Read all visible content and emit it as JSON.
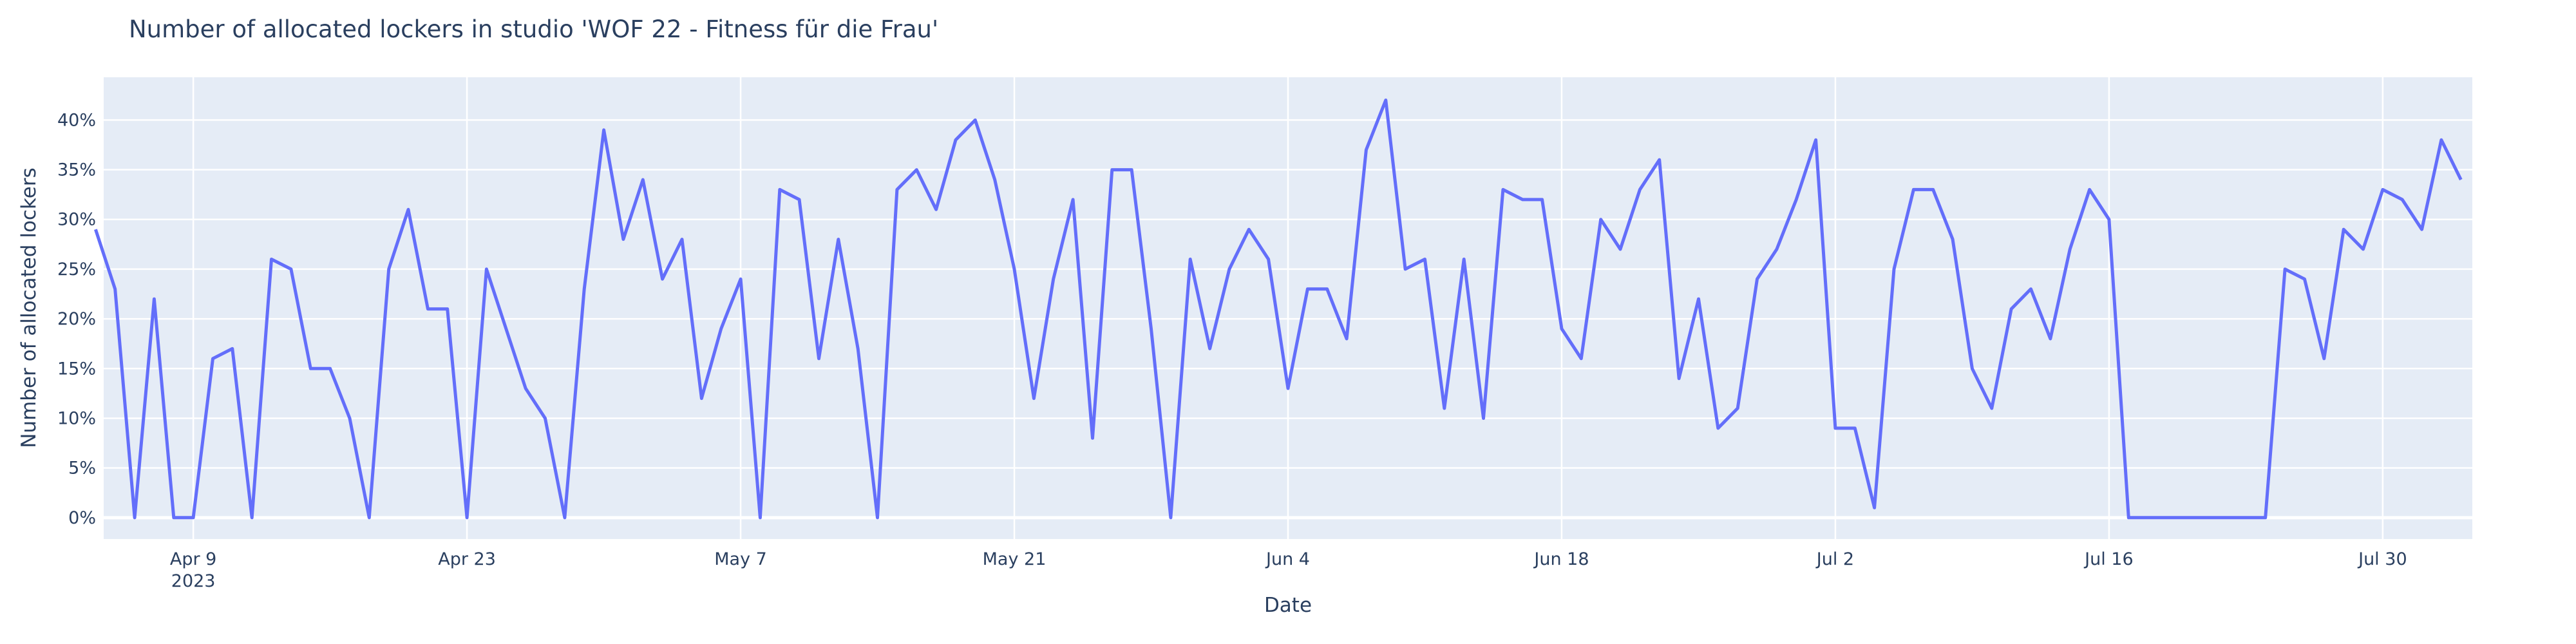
{
  "chart_data": {
    "type": "line",
    "title": "Number of allocated lockers in studio 'WOF 22 - Fitness für die Frau'",
    "x_label": "Date",
    "y_label": "Number of allocated lockers",
    "x": [
      "2023-04-04",
      "2023-04-05",
      "2023-04-06",
      "2023-04-07",
      "2023-04-08",
      "2023-04-09",
      "2023-04-10",
      "2023-04-11",
      "2023-04-12",
      "2023-04-13",
      "2023-04-14",
      "2023-04-15",
      "2023-04-16",
      "2023-04-17",
      "2023-04-18",
      "2023-04-19",
      "2023-04-20",
      "2023-04-21",
      "2023-04-22",
      "2023-04-23",
      "2023-04-24",
      "2023-04-25",
      "2023-04-26",
      "2023-04-27",
      "2023-04-28",
      "2023-04-29",
      "2023-04-30",
      "2023-05-01",
      "2023-05-02",
      "2023-05-03",
      "2023-05-04",
      "2023-05-05",
      "2023-05-06",
      "2023-05-07",
      "2023-05-08",
      "2023-05-09",
      "2023-05-10",
      "2023-05-11",
      "2023-05-12",
      "2023-05-13",
      "2023-05-14",
      "2023-05-15",
      "2023-05-16",
      "2023-05-17",
      "2023-05-18",
      "2023-05-19",
      "2023-05-20",
      "2023-05-21",
      "2023-05-22",
      "2023-05-23",
      "2023-05-24",
      "2023-05-25",
      "2023-05-26",
      "2023-05-27",
      "2023-05-28",
      "2023-05-29",
      "2023-05-30",
      "2023-05-31",
      "2023-06-01",
      "2023-06-02",
      "2023-06-03",
      "2023-06-04",
      "2023-06-05",
      "2023-06-06",
      "2023-06-07",
      "2023-06-08",
      "2023-06-09",
      "2023-06-10",
      "2023-06-11",
      "2023-06-12",
      "2023-06-13",
      "2023-06-14",
      "2023-06-15",
      "2023-06-16",
      "2023-06-17",
      "2023-06-18",
      "2023-06-19",
      "2023-06-20",
      "2023-06-21",
      "2023-06-22",
      "2023-06-23",
      "2023-06-24",
      "2023-06-25",
      "2023-06-26",
      "2023-06-27",
      "2023-06-28",
      "2023-06-29",
      "2023-06-30",
      "2023-07-01",
      "2023-07-02",
      "2023-07-03",
      "2023-07-04",
      "2023-07-05",
      "2023-07-06",
      "2023-07-07",
      "2023-07-08",
      "2023-07-09",
      "2023-07-10",
      "2023-07-11",
      "2023-07-12",
      "2023-07-13",
      "2023-07-14",
      "2023-07-15",
      "2023-07-16",
      "2023-07-17",
      "2023-07-18",
      "2023-07-19",
      "2023-07-20",
      "2023-07-21",
      "2023-07-22",
      "2023-07-23",
      "2023-07-24",
      "2023-07-25",
      "2023-07-26",
      "2023-07-27",
      "2023-07-28",
      "2023-07-29",
      "2023-07-30",
      "2023-07-31",
      "2023-08-01",
      "2023-08-02",
      "2023-08-03"
    ],
    "series": [
      {
        "name": "Number of allocated lockers",
        "color": "#636efa",
        "values": [
          29,
          23,
          0,
          22,
          0,
          0,
          16,
          17,
          0,
          26,
          25,
          15,
          15,
          10,
          0,
          25,
          31,
          21,
          21,
          0,
          25,
          19,
          13,
          10,
          0,
          23,
          39,
          28,
          34,
          24,
          28,
          12,
          19,
          24,
          0,
          33,
          32,
          16,
          28,
          17,
          0,
          33,
          35,
          31,
          38,
          40,
          34,
          25,
          12,
          24,
          32,
          8,
          35,
          35,
          19,
          0,
          26,
          17,
          25,
          29,
          26,
          13,
          23,
          23,
          18,
          37,
          42,
          25,
          26,
          11,
          26,
          10,
          33,
          32,
          32,
          19,
          16,
          30,
          27,
          33,
          36,
          14,
          22,
          9,
          11,
          24,
          27,
          32,
          38,
          9,
          9,
          1,
          25,
          33,
          33,
          28,
          15,
          11,
          21,
          23,
          18,
          27,
          33,
          30,
          0,
          0,
          0,
          0,
          0,
          0,
          0,
          0,
          25,
          24,
          16,
          29,
          27,
          33,
          32,
          29,
          38,
          34
        ]
      }
    ],
    "xlim": [
      "2023-04-04T10:00",
      "2023-08-03T14:00"
    ],
    "xticks": [
      {
        "value": "2023-04-09",
        "label": "Apr 9"
      },
      {
        "value": "2023-04-23",
        "label": "Apr 23"
      },
      {
        "value": "2023-05-07",
        "label": "May 7"
      },
      {
        "value": "2023-05-21",
        "label": "May 21"
      },
      {
        "value": "2023-06-04",
        "label": "Jun 4"
      },
      {
        "value": "2023-06-18",
        "label": "Jun 18"
      },
      {
        "value": "2023-07-02",
        "label": "Jul 2"
      },
      {
        "value": "2023-07-16",
        "label": "Jul 16"
      },
      {
        "value": "2023-07-30",
        "label": "Jul 30"
      }
    ],
    "x_year_label": "2023",
    "ylim": [
      -2.15,
      44.3
    ],
    "yticks": [
      {
        "value": 0,
        "label": "0%"
      },
      {
        "value": 5,
        "label": "5%"
      },
      {
        "value": 10,
        "label": "10%"
      },
      {
        "value": 15,
        "label": "15%"
      },
      {
        "value": 20,
        "label": "20%"
      },
      {
        "value": 25,
        "label": "25%"
      },
      {
        "value": 30,
        "label": "30%"
      },
      {
        "value": 35,
        "label": "35%"
      },
      {
        "value": 40,
        "label": "40%"
      }
    ],
    "grid": true,
    "plot_bgcolor": "#e5ecf6"
  }
}
